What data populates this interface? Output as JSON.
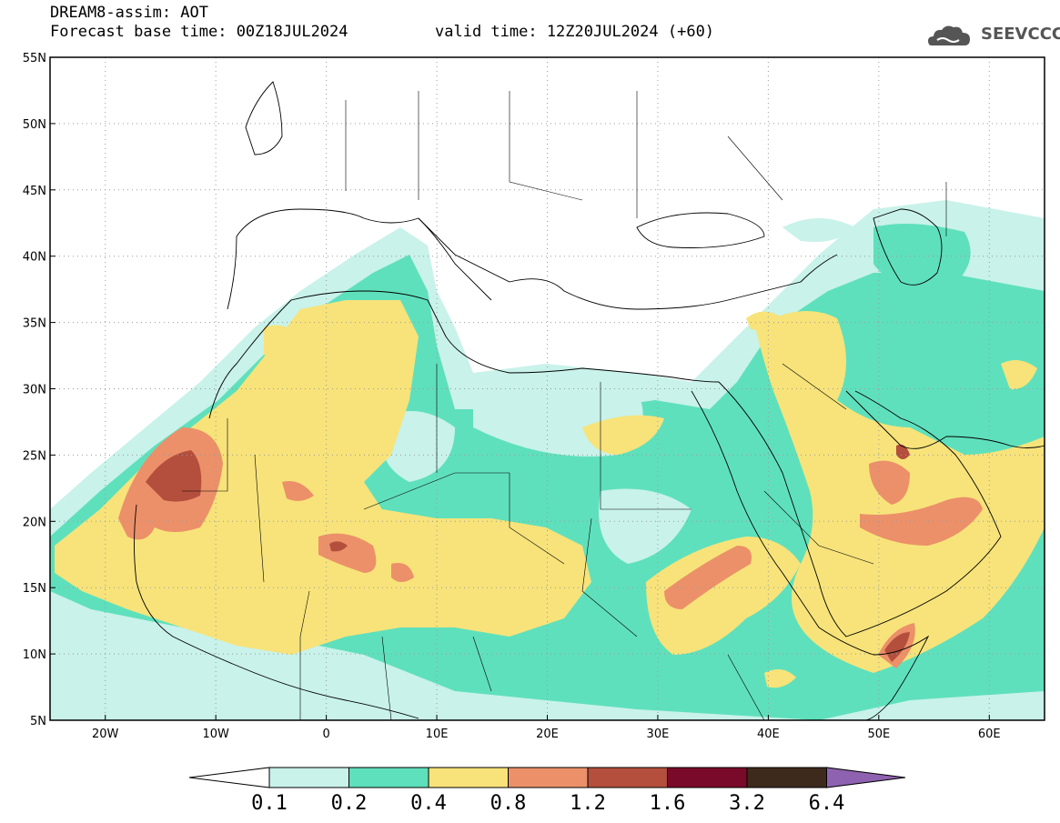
{
  "title": {
    "line1": "DREAM8-assim: AOT",
    "line2": "Forecast base time: 00Z18JUL2024",
    "line3": "valid time: 12Z20JUL2024 (+60)"
  },
  "logo": {
    "text": "SEEVCCC",
    "icon": "cloud-icon"
  },
  "map": {
    "lon_range": [
      -25,
      65
    ],
    "lat_range": [
      5,
      55
    ],
    "lon_ticks": [
      {
        "value": -20,
        "label": "20W"
      },
      {
        "value": -10,
        "label": "10W"
      },
      {
        "value": 0,
        "label": "0"
      },
      {
        "value": 10,
        "label": "10E"
      },
      {
        "value": 20,
        "label": "20E"
      },
      {
        "value": 30,
        "label": "30E"
      },
      {
        "value": 40,
        "label": "40E"
      },
      {
        "value": 50,
        "label": "50E"
      },
      {
        "value": 60,
        "label": "60E"
      }
    ],
    "lat_ticks": [
      {
        "value": 55,
        "label": "55N"
      },
      {
        "value": 50,
        "label": "50N"
      },
      {
        "value": 45,
        "label": "45N"
      },
      {
        "value": 40,
        "label": "40N"
      },
      {
        "value": 35,
        "label": "35N"
      },
      {
        "value": 30,
        "label": "30N"
      },
      {
        "value": 25,
        "label": "25N"
      },
      {
        "value": 20,
        "label": "20N"
      },
      {
        "value": 15,
        "label": "15N"
      },
      {
        "value": 10,
        "label": "10N"
      },
      {
        "value": 5,
        "label": "5N"
      }
    ],
    "grid": true
  },
  "colorbar": {
    "bins": [
      {
        "label": "0.1",
        "color": "#c8f2ea"
      },
      {
        "label": "0.2",
        "color": "#5fe0bc"
      },
      {
        "label": "0.4",
        "color": "#f7e37a"
      },
      {
        "label": "0.8",
        "color": "#ec9069"
      },
      {
        "label": "1.2",
        "color": "#b34f3c"
      },
      {
        "label": "1.6",
        "color": "#7a0a2a"
      },
      {
        "label": "3.2",
        "color": "#3e2a1c"
      },
      {
        "label": "6.4",
        "color": "#8e62b0"
      }
    ],
    "low_color": "#ffffff"
  }
}
